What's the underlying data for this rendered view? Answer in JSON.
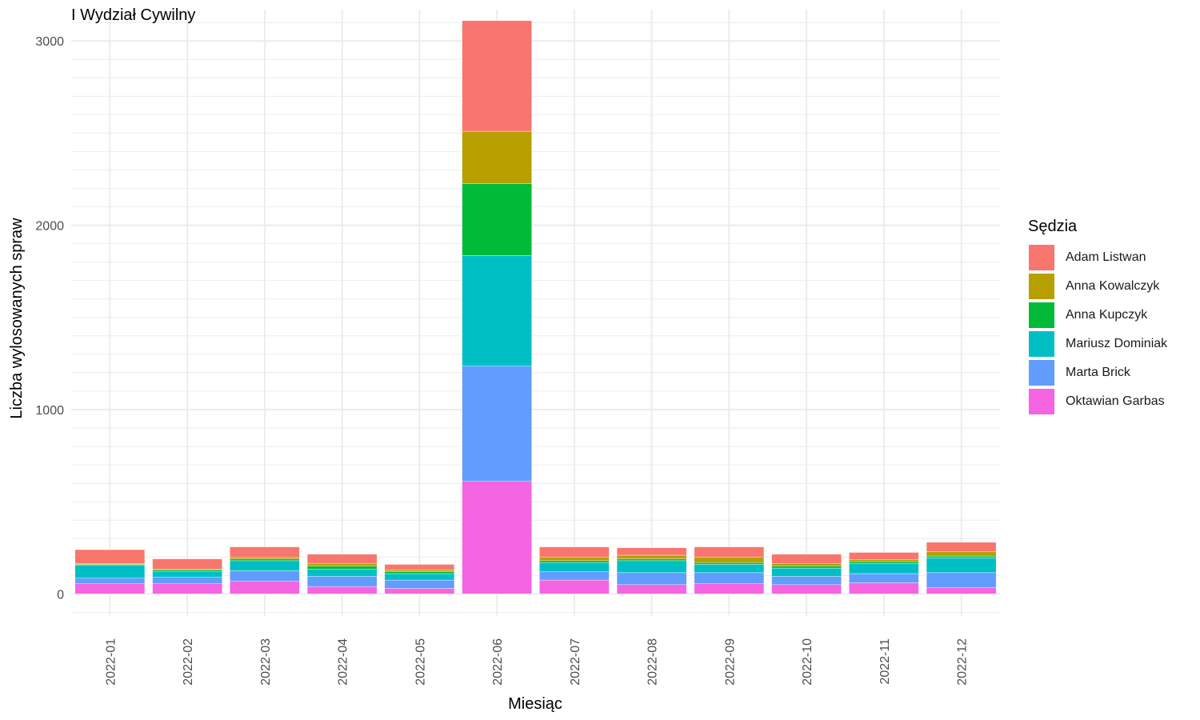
{
  "chart_data": {
    "type": "bar",
    "stacked": true,
    "title": "I Wydział Cywilny",
    "xlabel": "Miesiąc",
    "ylabel": "Liczba wylosowanych spraw",
    "ylim": [
      -120,
      3170
    ],
    "yticks": [
      0,
      1000,
      2000,
      3000
    ],
    "grid": true,
    "legend_title": "Sędzia",
    "legend_position": "right",
    "categories": [
      "2022-01",
      "2022-02",
      "2022-03",
      "2022-04",
      "2022-05",
      "2022-06",
      "2022-07",
      "2022-08",
      "2022-09",
      "2022-10",
      "2022-11",
      "2022-12"
    ],
    "series": [
      {
        "name": "Oktawian Garbas",
        "color": "#F564E3",
        "values": [
          55,
          55,
          70,
          40,
          30,
          610,
          75,
          50,
          55,
          50,
          60,
          35
        ]
      },
      {
        "name": "Marta Brick",
        "color": "#619CFF",
        "values": [
          30,
          35,
          55,
          55,
          45,
          625,
          45,
          65,
          60,
          45,
          50,
          80
        ]
      },
      {
        "name": "Mariusz Dominiak",
        "color": "#00BFC4",
        "values": [
          70,
          30,
          55,
          40,
          35,
          600,
          50,
          65,
          45,
          45,
          55,
          80
        ]
      },
      {
        "name": "Anna Kupczyk",
        "color": "#00BA38",
        "values": [
          5,
          10,
          10,
          15,
          10,
          390,
          10,
          10,
          10,
          10,
          10,
          10
        ]
      },
      {
        "name": "Anna Kowalczyk",
        "color": "#B79F00",
        "values": [
          5,
          5,
          10,
          15,
          10,
          285,
          20,
          20,
          30,
          15,
          10,
          25
        ]
      },
      {
        "name": "Adam Listwan",
        "color": "#F8766D",
        "values": [
          75,
          55,
          55,
          50,
          30,
          600,
          55,
          40,
          55,
          50,
          40,
          50
        ]
      }
    ],
    "legend_order": [
      "Adam Listwan",
      "Anna Kowalczyk",
      "Anna Kupczyk",
      "Mariusz Dominiak",
      "Marta Brick",
      "Oktawian Garbas"
    ]
  }
}
